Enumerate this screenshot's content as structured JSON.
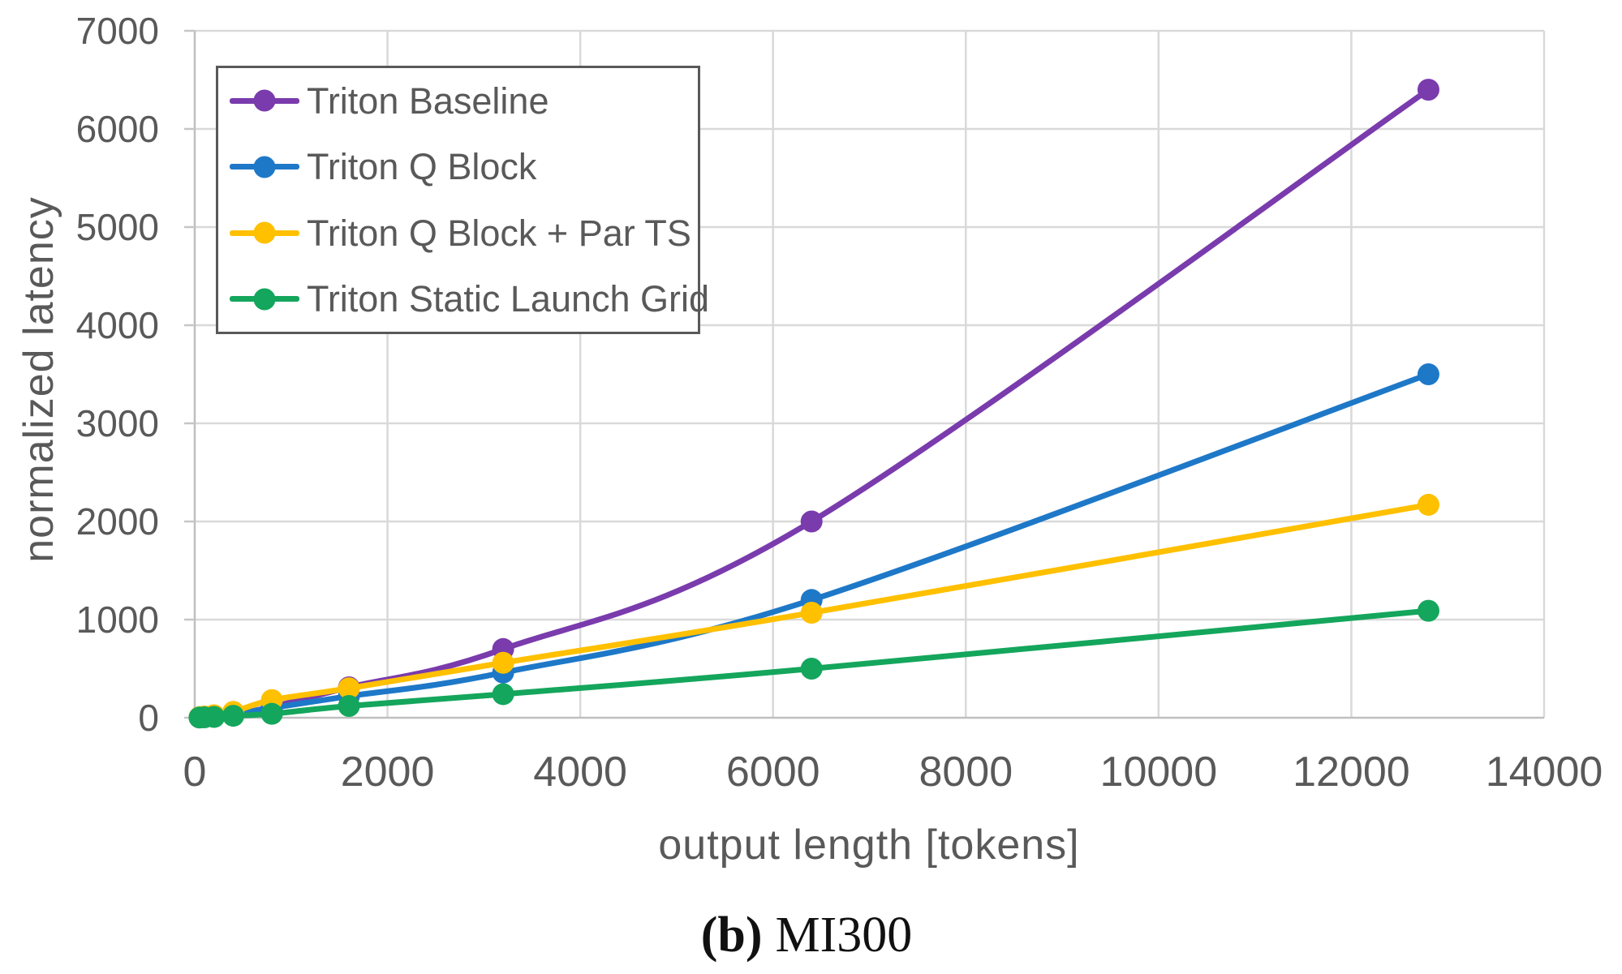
{
  "figure": {
    "caption": {
      "prefix": "(b)",
      "label": "MI300"
    }
  },
  "chart_data": {
    "type": "line",
    "title": "",
    "xlabel": "output length [tokens]",
    "ylabel": "normalized latency",
    "xlim": [
      0,
      14000
    ],
    "ylim": [
      0,
      7000
    ],
    "x_ticks": [
      0,
      2000,
      4000,
      6000,
      8000,
      10000,
      12000,
      14000
    ],
    "y_ticks": [
      0,
      1000,
      2000,
      3000,
      4000,
      5000,
      6000,
      7000
    ],
    "grid": true,
    "legend_position": "top-left",
    "x": [
      50,
      100,
      200,
      400,
      800,
      1600,
      3200,
      6400,
      12800
    ],
    "series": [
      {
        "name": "Triton Baseline",
        "color": "#7A3BAD",
        "values": [
          4,
          8,
          15,
          35,
          110,
          310,
          700,
          2000,
          6400
        ]
      },
      {
        "name": "Triton Q Block",
        "color": "#1E78C8",
        "values": [
          4,
          8,
          15,
          35,
          100,
          220,
          460,
          1200,
          3500
        ]
      },
      {
        "name": "Triton Q Block + Par TS",
        "color": "#FFC000",
        "values": [
          6,
          12,
          25,
          60,
          180,
          300,
          560,
          1070,
          2170
        ]
      },
      {
        "name": "Triton Static Launch Grid",
        "color": "#14A65C",
        "values": [
          2,
          4,
          8,
          20,
          40,
          120,
          240,
          500,
          1090
        ]
      }
    ]
  },
  "style": {
    "background": "#FFFFFF",
    "grid_color": "#D9D9D9",
    "axis_color": "#BFBFBF",
    "tick_mark_color": "#C6C6C6",
    "tick_label_color": "#595959",
    "axis_title_color": "#595959",
    "legend_border_color": "#595959",
    "legend_text_color": "#595959",
    "caption_color": "#111111"
  }
}
